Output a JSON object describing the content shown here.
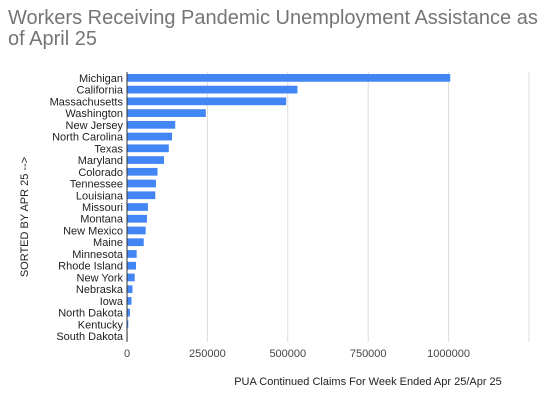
{
  "chart_data": {
    "type": "bar",
    "orientation": "horizontal",
    "title": "Workers Receiving Pandemic Unemployment Assistance as of April 25",
    "xlabel": "PUA Continued Claims For Week Ended Apr 25/Apr 25",
    "ylabel": "SORTED BY APR 25 -->",
    "categories": [
      "Michigan",
      "California",
      "Massachusetts",
      "Washington",
      "New Jersey",
      "North Carolina",
      "Texas",
      "Maryland",
      "Colorado",
      "Tennessee",
      "Louisiana",
      "Missouri",
      "Montana",
      "New Mexico",
      "Maine",
      "Minnesota",
      "Rhode Island",
      "New York",
      "Nebraska",
      "Iowa",
      "North Dakota",
      "Kentucky",
      "South Dakota"
    ],
    "values": [
      1005000,
      530000,
      495000,
      245000,
      150000,
      140000,
      130000,
      115000,
      95000,
      90000,
      88000,
      65000,
      62000,
      58000,
      52000,
      30000,
      28000,
      24000,
      17000,
      14000,
      9000,
      4000,
      2000
    ],
    "xlim": [
      0,
      1250000
    ],
    "xticks": [
      0,
      250000,
      500000,
      750000,
      1000000
    ],
    "xtick_labels": [
      "0",
      "250000",
      "500000",
      "750000",
      "1000000"
    ],
    "bar_color": "#4285f4",
    "grid": true
  }
}
